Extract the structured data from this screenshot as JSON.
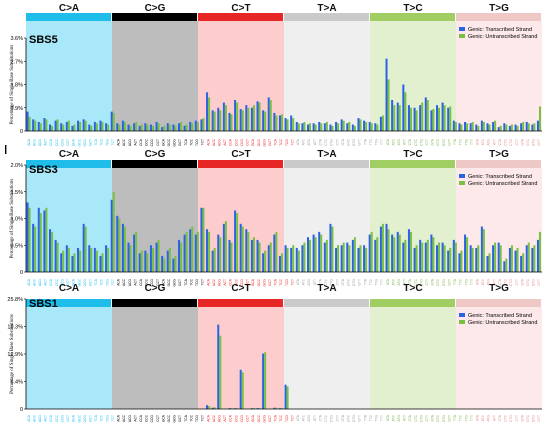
{
  "colors": {
    "transcribed": "#2b63e3",
    "untranscribed": "#7ac143",
    "header": [
      "#1ebdea",
      "#000000",
      "#e62725",
      "#cbcacb",
      "#a1ce63",
      "#edc8c5"
    ],
    "background": [
      "#a9e8f8",
      "#bdbdbd",
      "#fdcdcd",
      "#efefef",
      "#e2f0d0",
      "#fde9e9"
    ],
    "context": [
      "#1ebdea",
      "#000000",
      "#e62725",
      "#9a9a9a",
      "#7ab04a",
      "#e08a86"
    ]
  },
  "chart_data": [
    {
      "type": "bar",
      "title": "SBS5",
      "ylabel": "Percentage of Single Base Substitutions",
      "yticks": [
        "0",
        "0.9%",
        "1.8%",
        "2.7%",
        "3.6%"
      ],
      "ylim": [
        0,
        3.6
      ],
      "mutation_types": [
        "C>A",
        "C>G",
        "C>T",
        "T>A",
        "T>C",
        "T>G"
      ],
      "legend": [
        "Genic: Transcribed Strand",
        "Genic: Untranscribed Strand"
      ],
      "legend_placement": "top-right",
      "series": [
        {
          "name": "Genic: Transcribed Strand",
          "values": [
            0.75,
            0.45,
            0.35,
            0.5,
            0.25,
            0.4,
            0.3,
            0.35,
            0.2,
            0.4,
            0.45,
            0.25,
            0.35,
            0.4,
            0.3,
            0.75,
            0.3,
            0.4,
            0.25,
            0.3,
            0.2,
            0.3,
            0.25,
            0.35,
            0.15,
            0.3,
            0.25,
            0.3,
            0.2,
            0.35,
            0.4,
            0.45,
            1.5,
            0.8,
            0.9,
            1.1,
            0.7,
            1.2,
            0.85,
            1.0,
            0.9,
            1.15,
            0.8,
            1.3,
            0.7,
            0.6,
            0.5,
            0.6,
            0.35,
            0.3,
            0.25,
            0.3,
            0.35,
            0.3,
            0.25,
            0.35,
            0.45,
            0.3,
            0.25,
            0.5,
            0.4,
            0.35,
            0.3,
            0.55,
            2.8,
            1.2,
            1.1,
            1.8,
            1.0,
            0.9,
            1.0,
            1.3,
            0.8,
            1.0,
            1.1,
            0.9,
            0.4,
            0.3,
            0.35,
            0.3,
            0.25,
            0.4,
            0.3,
            0.35,
            0.15,
            0.3,
            0.2,
            0.25,
            0.3,
            0.35,
            0.25,
            0.4
          ]
        },
        {
          "name": "Genic: Untranscribed Strand",
          "values": [
            0.55,
            0.4,
            0.3,
            0.45,
            0.2,
            0.45,
            0.25,
            0.4,
            0.25,
            0.35,
            0.4,
            0.2,
            0.3,
            0.35,
            0.25,
            0.7,
            0.25,
            0.35,
            0.2,
            0.35,
            0.25,
            0.25,
            0.2,
            0.3,
            0.2,
            0.25,
            0.2,
            0.35,
            0.25,
            0.3,
            0.35,
            0.5,
            1.3,
            0.75,
            0.8,
            1.0,
            0.65,
            1.1,
            0.8,
            0.9,
            1.0,
            1.1,
            0.75,
            1.2,
            0.6,
            0.65,
            0.45,
            0.5,
            0.3,
            0.35,
            0.3,
            0.25,
            0.3,
            0.35,
            0.2,
            0.3,
            0.4,
            0.35,
            0.2,
            0.45,
            0.35,
            0.3,
            0.25,
            0.6,
            2.0,
            1.0,
            1.0,
            1.5,
            0.9,
            0.8,
            1.1,
            1.2,
            0.85,
            0.9,
            1.0,
            0.95,
            0.35,
            0.25,
            0.3,
            0.35,
            0.2,
            0.35,
            0.25,
            0.4,
            0.2,
            0.25,
            0.25,
            0.2,
            0.35,
            0.3,
            0.3,
            0.95
          ]
        }
      ]
    },
    {
      "type": "bar",
      "title": "SBS3",
      "ylabel": "Percentage of Single Base Substitutions",
      "yticks": [
        "0",
        "0.5%",
        "1.0%",
        "1.5%",
        "2.0%"
      ],
      "ylim": [
        0,
        2.0
      ],
      "mutation_types": [
        "C>A",
        "C>G",
        "C>T",
        "T>A",
        "T>C",
        "T>G"
      ],
      "legend": [
        "Genic: Transcribed Strand",
        "Genic: Untranscribed Strand"
      ],
      "legend_placement": "top-right",
      "series": [
        {
          "name": "Genic: Transcribed Strand",
          "values": [
            1.3,
            0.9,
            1.2,
            1.15,
            0.8,
            0.6,
            0.35,
            0.5,
            0.3,
            0.45,
            0.9,
            0.5,
            0.45,
            0.3,
            0.5,
            1.35,
            1.05,
            0.9,
            0.55,
            0.7,
            0.35,
            0.4,
            0.5,
            0.55,
            0.3,
            0.4,
            0.25,
            0.6,
            0.7,
            0.8,
            0.7,
            1.2,
            0.8,
            0.4,
            0.7,
            0.9,
            0.6,
            1.15,
            0.9,
            0.8,
            0.6,
            0.6,
            0.35,
            0.5,
            0.7,
            0.3,
            0.5,
            0.45,
            0.45,
            0.5,
            0.65,
            0.7,
            0.75,
            0.55,
            0.9,
            0.45,
            0.5,
            0.55,
            0.6,
            0.45,
            0.5,
            0.7,
            0.6,
            0.85,
            0.9,
            0.7,
            0.75,
            0.55,
            0.8,
            0.45,
            0.6,
            0.55,
            0.7,
            0.5,
            0.55,
            0.4,
            0.6,
            0.35,
            0.7,
            0.5,
            0.45,
            0.85,
            0.3,
            0.5,
            0.55,
            0.2,
            0.45,
            0.4,
            0.3,
            0.5,
            0.45,
            0.6
          ]
        },
        {
          "name": "Genic: Untranscribed Strand",
          "values": [
            1.2,
            0.85,
            1.1,
            1.2,
            0.75,
            0.55,
            0.4,
            0.45,
            0.35,
            0.4,
            0.85,
            0.45,
            0.4,
            0.35,
            0.45,
            1.5,
            1.0,
            0.85,
            0.5,
            0.75,
            0.4,
            0.35,
            0.45,
            0.6,
            0.25,
            0.45,
            0.3,
            0.55,
            0.75,
            0.85,
            0.75,
            1.2,
            0.75,
            0.45,
            0.65,
            0.95,
            0.55,
            1.1,
            0.85,
            0.75,
            0.65,
            0.55,
            0.4,
            0.55,
            0.75,
            0.35,
            0.45,
            0.5,
            0.4,
            0.55,
            0.6,
            0.65,
            0.7,
            0.6,
            0.85,
            0.5,
            0.55,
            0.5,
            0.65,
            0.5,
            0.45,
            0.75,
            0.65,
            0.9,
            0.8,
            0.65,
            0.7,
            0.6,
            0.75,
            0.5,
            0.55,
            0.6,
            0.65,
            0.55,
            0.5,
            0.45,
            0.55,
            0.4,
            0.65,
            0.45,
            0.5,
            0.8,
            0.35,
            0.55,
            0.5,
            0.25,
            0.5,
            0.45,
            0.35,
            0.55,
            0.5,
            0.75
          ]
        }
      ]
    },
    {
      "type": "bar",
      "title": "SBS1",
      "ylabel": "Percentage of Single Base Substitutions",
      "yticks": [
        "0",
        "6.4%",
        "12.9%",
        "19.3%",
        "25.8%"
      ],
      "ylim": [
        0,
        25.8
      ],
      "mutation_types": [
        "C>A",
        "C>G",
        "C>T",
        "T>A",
        "T>C",
        "T>G"
      ],
      "legend": [
        "Genic: Transcribed Strand",
        "Genic: Untranscribed Strand"
      ],
      "legend_placement": "top-right",
      "series": [
        {
          "name": "Genic: Transcribed Strand",
          "values": [
            0,
            0,
            0,
            0,
            0,
            0,
            0,
            0,
            0,
            0,
            0,
            0,
            0,
            0,
            0,
            0,
            0,
            0,
            0,
            0,
            0,
            0,
            0,
            0,
            0,
            0,
            0,
            0,
            0,
            0,
            0,
            0,
            0.9,
            0.3,
            19.8,
            0,
            0.2,
            0.2,
            9.2,
            0,
            0.2,
            0.2,
            13.0,
            0,
            0.3,
            0.2,
            5.7,
            0,
            0,
            0,
            0,
            0,
            0,
            0,
            0,
            0,
            0,
            0,
            0,
            0,
            0,
            0,
            0,
            0,
            0,
            0,
            0,
            0,
            0,
            0,
            0,
            0,
            0,
            0,
            0,
            0,
            0,
            0,
            0,
            0,
            0,
            0,
            0,
            0,
            0,
            0,
            0,
            0,
            0,
            0,
            0,
            0
          ]
        },
        {
          "name": "Genic: Untranscribed Strand",
          "values": [
            0,
            0,
            0,
            0,
            0,
            0,
            0,
            0,
            0,
            0,
            0,
            0,
            0,
            0,
            0,
            0,
            0,
            0,
            0,
            0,
            0,
            0,
            0,
            0,
            0,
            0,
            0,
            0,
            0,
            0,
            0,
            0,
            0.7,
            0.4,
            17.2,
            0,
            0.2,
            0.2,
            8.6,
            0,
            0.2,
            0.2,
            13.3,
            0,
            0.3,
            0.2,
            5.3,
            0,
            0,
            0,
            0,
            0,
            0,
            0,
            0,
            0,
            0,
            0,
            0,
            0,
            0,
            0,
            0,
            0,
            0,
            0,
            0,
            0,
            0,
            0,
            0,
            0,
            0,
            0,
            0,
            0,
            0,
            0,
            0,
            0,
            0,
            0,
            0,
            0,
            0,
            0,
            0,
            0,
            0,
            0,
            0,
            0
          ]
        }
      ]
    }
  ]
}
